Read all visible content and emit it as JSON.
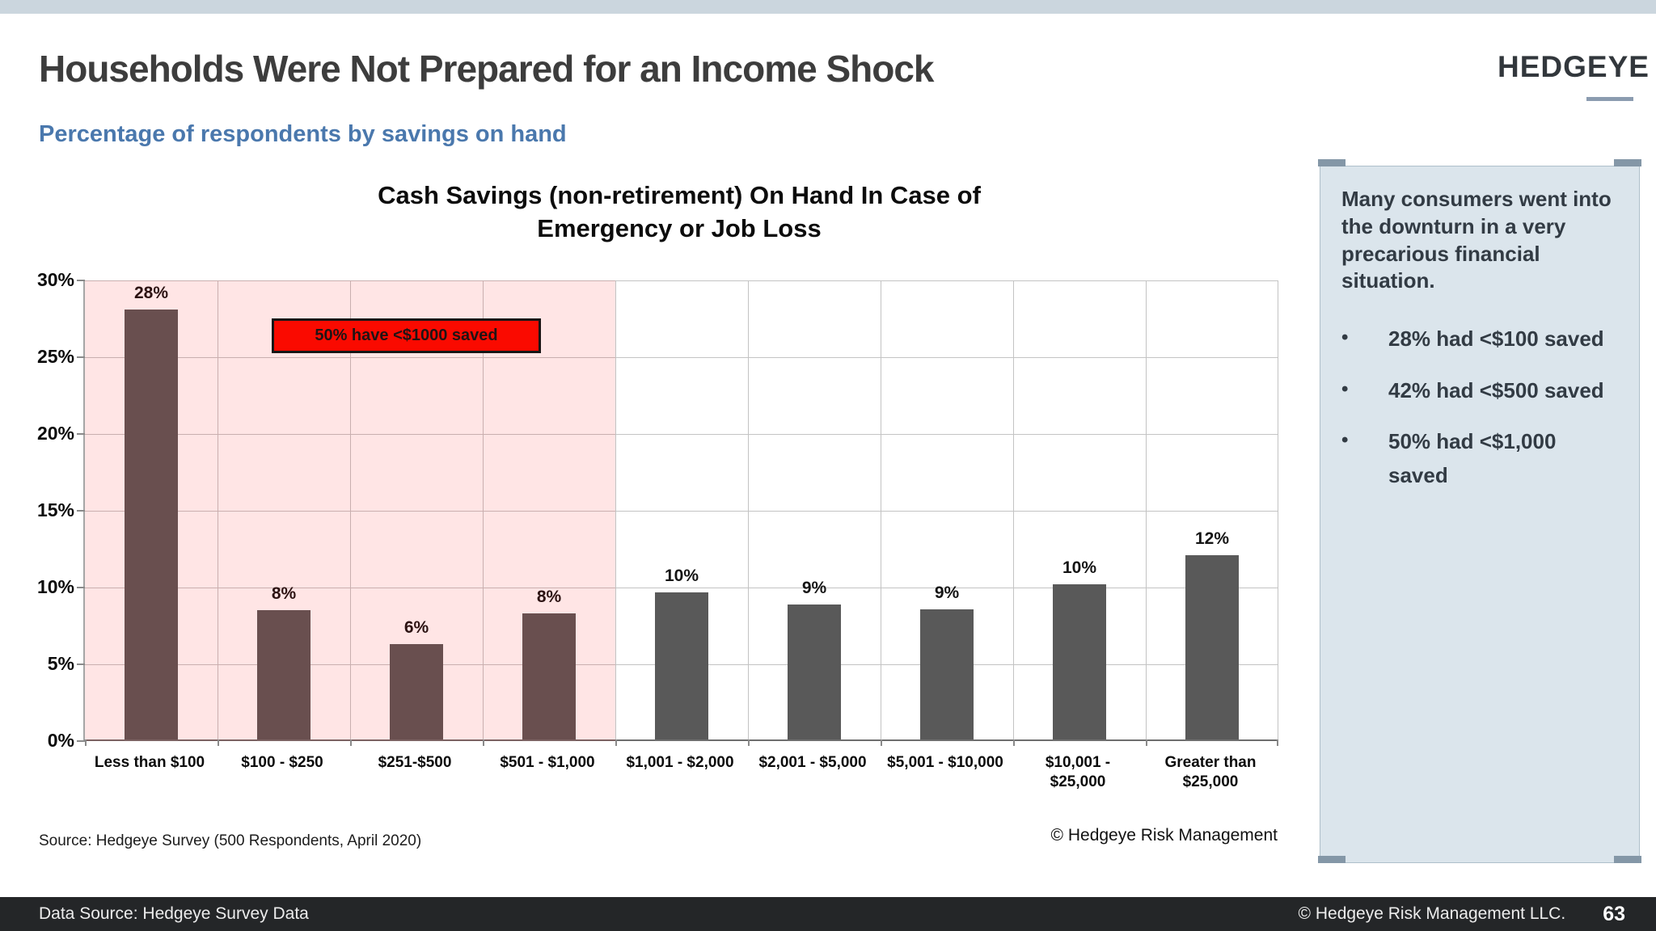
{
  "slide": {
    "title": "Households Were Not Prepared for an Income Shock",
    "subtitle": "Percentage of respondents by savings on hand",
    "logo_text": "HEDGEYE",
    "source_note": "Source: Hedgeye Survey (500 Respondents, April 2020)",
    "chart_copyright": "© Hedgeye Risk Management"
  },
  "chart_data": {
    "type": "bar",
    "title": "Cash Savings (non-retirement) On Hand In Case of\nEmergency or Job Loss",
    "categories": [
      "Less than $100",
      "$100 - $250",
      "$251-$500",
      "$501 - $1,000",
      "$1,001 - $2,000",
      "$2,001 - $5,000",
      "$5,001 - $10,000",
      "$10,001 -\n$25,000",
      "Greater than\n$25,000"
    ],
    "values": [
      28,
      8,
      6,
      8,
      10,
      9,
      9,
      10,
      12
    ],
    "bar_labels": [
      "28%",
      "8%",
      "6%",
      "8%",
      "10%",
      "9%",
      "9%",
      "10%",
      "12%"
    ],
    "bar_heights_pct": [
      28,
      8.4,
      6.2,
      8.2,
      9.6,
      8.8,
      8.5,
      10.1,
      12
    ],
    "y_ticks": [
      "30%",
      "25%",
      "20%",
      "15%",
      "10%",
      "5%",
      "0%"
    ],
    "y_tick_values": [
      30,
      25,
      20,
      15,
      10,
      5,
      0
    ],
    "ylim": [
      0,
      30
    ],
    "grid": true,
    "bar_color": "#595959",
    "highlight": {
      "columns_covered": 4,
      "fill": "rgba(255,0,0,0.10)",
      "annotation": "50% have <$1000 saved",
      "annotation_fill": "#fa0a00"
    }
  },
  "sidebar": {
    "intro": "Many consumers went into the downturn in a very precarious financial situation.",
    "bullet_glyph": "•",
    "bullets": [
      "28% had <$100 saved",
      "42% had <$500 saved",
      "50% had <$1,000 saved"
    ]
  },
  "footer": {
    "left": "Data Source: Hedgeye Survey Data",
    "right": "© Hedgeye Risk Management LLC.",
    "page": "63"
  }
}
